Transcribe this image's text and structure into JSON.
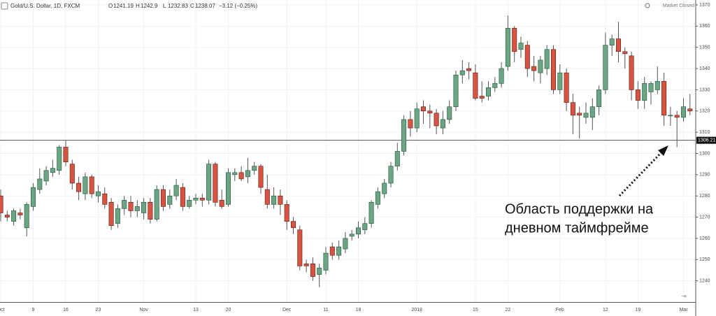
{
  "chart_data": {
    "type": "candlestick",
    "title": "Gold/U.S. Dollar, 1D, FXCM",
    "ohlc_header": [
      {
        "label": "O",
        "value": 1241.19
      },
      {
        "label": "H",
        "value": 1242.9
      },
      {
        "label": "L",
        "value": 1232.83
      },
      {
        "label": "C",
        "value": 1238.07
      }
    ],
    "change": "−3.12 (−0.25%)",
    "status": "Market Closed",
    "up_color": "#6ba583",
    "down_color": "#d75442",
    "ylim": [
      1230,
      1370
    ],
    "yticks": [
      1240,
      1250,
      1260,
      1270,
      1280,
      1290,
      1300,
      1310,
      1320,
      1330,
      1340,
      1350,
      1360,
      1370
    ],
    "grid": true,
    "hline": 1306.21,
    "annotation": [
      "Область поддержки на",
      "дневном таймфрейме"
    ],
    "categories": [
      "Oct",
      null,
      null,
      null,
      null,
      "9",
      null,
      null,
      null,
      null,
      "16",
      null,
      null,
      null,
      null,
      "23",
      null,
      null,
      null,
      null,
      null,
      null,
      "Nov",
      null,
      null,
      null,
      null,
      null,
      null,
      null,
      "13",
      null,
      null,
      null,
      null,
      "20",
      null,
      null,
      null,
      null,
      null,
      null,
      null,
      null,
      "Dec",
      null,
      null,
      null,
      null,
      null,
      "11",
      null,
      null,
      null,
      null,
      "18",
      null,
      null,
      null,
      null,
      null,
      null,
      null,
      null,
      "2018",
      null,
      null,
      null,
      null,
      null,
      null,
      null,
      null,
      "15",
      null,
      null,
      null,
      null,
      "22",
      null,
      null,
      null,
      null,
      null,
      null,
      null,
      "Feb",
      null,
      null,
      null,
      null,
      null,
      null,
      "12",
      null,
      null,
      null,
      null,
      "19",
      null,
      null,
      null,
      null,
      null,
      null,
      "Mar",
      null
    ],
    "candles": [
      [
        1280,
        1283,
        1268,
        1272
      ],
      [
        1271,
        1273,
        1268,
        1270
      ],
      [
        1268,
        1274,
        1266,
        1273
      ],
      [
        1272,
        1274,
        1269,
        1271
      ],
      [
        1265,
        1277,
        1261,
        1276
      ],
      [
        1275,
        1286,
        1273,
        1284
      ],
      [
        1283,
        1293,
        1281,
        1288
      ],
      [
        1287,
        1294,
        1285,
        1292
      ],
      [
        1291,
        1297,
        1289,
        1293
      ],
      [
        1292,
        1304,
        1290,
        1303
      ],
      [
        1303,
        1306,
        1294,
        1296
      ],
      [
        1295,
        1297,
        1283,
        1286
      ],
      [
        1286,
        1289,
        1278,
        1282
      ],
      [
        1281,
        1291,
        1278,
        1289
      ],
      [
        1289,
        1290,
        1279,
        1281
      ],
      [
        1280,
        1285,
        1277,
        1282
      ],
      [
        1281,
        1284,
        1274,
        1276
      ],
      [
        1277,
        1279,
        1264,
        1266
      ],
      [
        1267,
        1276,
        1265,
        1274
      ],
      [
        1274,
        1280,
        1271,
        1278
      ],
      [
        1277,
        1280,
        1270,
        1273
      ],
      [
        1273,
        1278,
        1270,
        1275
      ],
      [
        1272,
        1279,
        1269,
        1277
      ],
      [
        1277,
        1279,
        1267,
        1269
      ],
      [
        1269,
        1285,
        1268,
        1283
      ],
      [
        1283,
        1285,
        1273,
        1275
      ],
      [
        1276,
        1283,
        1274,
        1280
      ],
      [
        1280,
        1288,
        1278,
        1285
      ],
      [
        1284,
        1286,
        1273,
        1275
      ],
      [
        1275,
        1280,
        1274,
        1278
      ],
      [
        1278,
        1281,
        1276,
        1279
      ],
      [
        1279,
        1281,
        1275,
        1278
      ],
      [
        1278,
        1297,
        1276,
        1295
      ],
      [
        1295,
        1296,
        1275,
        1277
      ],
      [
        1278,
        1283,
        1274,
        1275
      ],
      [
        1276,
        1293,
        1275,
        1291
      ],
      [
        1290,
        1293,
        1287,
        1291
      ],
      [
        1291,
        1294,
        1287,
        1288
      ],
      [
        1289,
        1298,
        1286,
        1292
      ],
      [
        1292,
        1296,
        1290,
        1294
      ],
      [
        1294,
        1295,
        1281,
        1284
      ],
      [
        1283,
        1290,
        1274,
        1276
      ],
      [
        1276,
        1284,
        1274,
        1280
      ],
      [
        1280,
        1283,
        1271,
        1276
      ],
      [
        1276,
        1278,
        1264,
        1268
      ],
      [
        1268,
        1270,
        1262,
        1265
      ],
      [
        1264,
        1266,
        1245,
        1247
      ],
      [
        1248,
        1250,
        1244,
        1247
      ],
      [
        1248,
        1251,
        1240,
        1242
      ],
      [
        1243,
        1248,
        1237,
        1246
      ],
      [
        1245,
        1256,
        1243,
        1253
      ],
      [
        1256,
        1258,
        1250,
        1252
      ],
      [
        1252,
        1259,
        1250,
        1256
      ],
      [
        1255,
        1263,
        1253,
        1260
      ],
      [
        1261,
        1264,
        1259,
        1262
      ],
      [
        1262,
        1268,
        1260,
        1265
      ],
      [
        1264,
        1270,
        1262,
        1267
      ],
      [
        1267,
        1278,
        1265,
        1277
      ],
      [
        1276,
        1284,
        1274,
        1282
      ],
      [
        1281,
        1288,
        1279,
        1286
      ],
      [
        1286,
        1296,
        1284,
        1294
      ],
      [
        1294,
        1305,
        1292,
        1301
      ],
      [
        1301,
        1318,
        1299,
        1316
      ],
      [
        1316,
        1320,
        1308,
        1312
      ],
      [
        1312,
        1324,
        1310,
        1321
      ],
      [
        1322,
        1325,
        1314,
        1320
      ],
      [
        1320,
        1323,
        1312,
        1319
      ],
      [
        1319,
        1321,
        1309,
        1313
      ],
      [
        1312,
        1320,
        1309,
        1316
      ],
      [
        1316,
        1325,
        1314,
        1322
      ],
      [
        1322,
        1339,
        1320,
        1337
      ],
      [
        1337,
        1344,
        1333,
        1339
      ],
      [
        1340,
        1343,
        1335,
        1339
      ],
      [
        1338,
        1342,
        1325,
        1326
      ],
      [
        1327,
        1334,
        1324,
        1326
      ],
      [
        1327,
        1334,
        1325,
        1331
      ],
      [
        1331,
        1336,
        1329,
        1333
      ],
      [
        1333,
        1343,
        1331,
        1340
      ],
      [
        1341,
        1365,
        1339,
        1359
      ],
      [
        1359,
        1360,
        1343,
        1348
      ],
      [
        1349,
        1355,
        1345,
        1352
      ],
      [
        1351,
        1353,
        1336,
        1340
      ],
      [
        1341,
        1346,
        1334,
        1339
      ],
      [
        1338,
        1346,
        1333,
        1344
      ],
      [
        1340,
        1351,
        1337,
        1349
      ],
      [
        1349,
        1351,
        1328,
        1330
      ],
      [
        1330,
        1342,
        1328,
        1338
      ],
      [
        1338,
        1340,
        1320,
        1324
      ],
      [
        1324,
        1328,
        1309,
        1318
      ],
      [
        1319,
        1322,
        1307,
        1318
      ],
      [
        1317,
        1324,
        1314,
        1319
      ],
      [
        1317,
        1326,
        1311,
        1322
      ],
      [
        1322,
        1332,
        1318,
        1330
      ],
      [
        1330,
        1357,
        1328,
        1351
      ],
      [
        1351,
        1356,
        1346,
        1354
      ],
      [
        1354,
        1362,
        1343,
        1348
      ],
      [
        1348,
        1350,
        1340,
        1347
      ],
      [
        1346,
        1348,
        1325,
        1330
      ],
      [
        1330,
        1334,
        1321,
        1325
      ],
      [
        1325,
        1336,
        1321,
        1333
      ],
      [
        1329,
        1334,
        1323,
        1333
      ],
      [
        1330,
        1341,
        1328,
        1334
      ],
      [
        1334,
        1338,
        1313,
        1318
      ],
      [
        1318,
        1322,
        1313,
        1318
      ],
      [
        1318,
        1320,
        1303,
        1317
      ],
      [
        1317,
        1326,
        1315,
        1322
      ],
      [
        1321,
        1328,
        1318,
        1320
      ]
    ]
  }
}
